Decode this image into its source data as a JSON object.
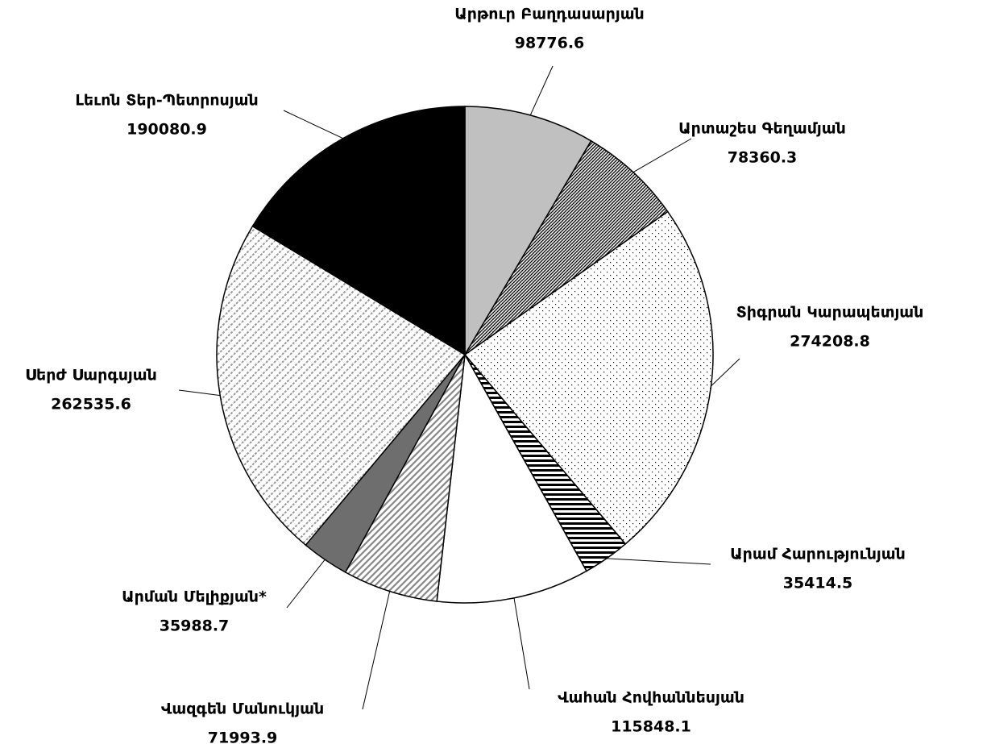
{
  "chart_data": {
    "type": "pie",
    "categories": [
      "Արթուր Բաղդասարյան",
      "Արտաշես Գեղամյան",
      "Տիգրան Կարապետյան",
      "Արամ Հարությունյան",
      "Վահան Հովհաննեսյան",
      "Վազգեն Մանուկյան",
      "Արման Մելիքյան*",
      "Սերժ Սարգսյան",
      "Լեւոն Տեր-Պետրոսյան"
    ],
    "values": [
      98776.6,
      78360.3,
      274208.8,
      35414.5,
      115848.1,
      71993.9,
      35988.7,
      262535.6,
      190080.9
    ]
  }
}
